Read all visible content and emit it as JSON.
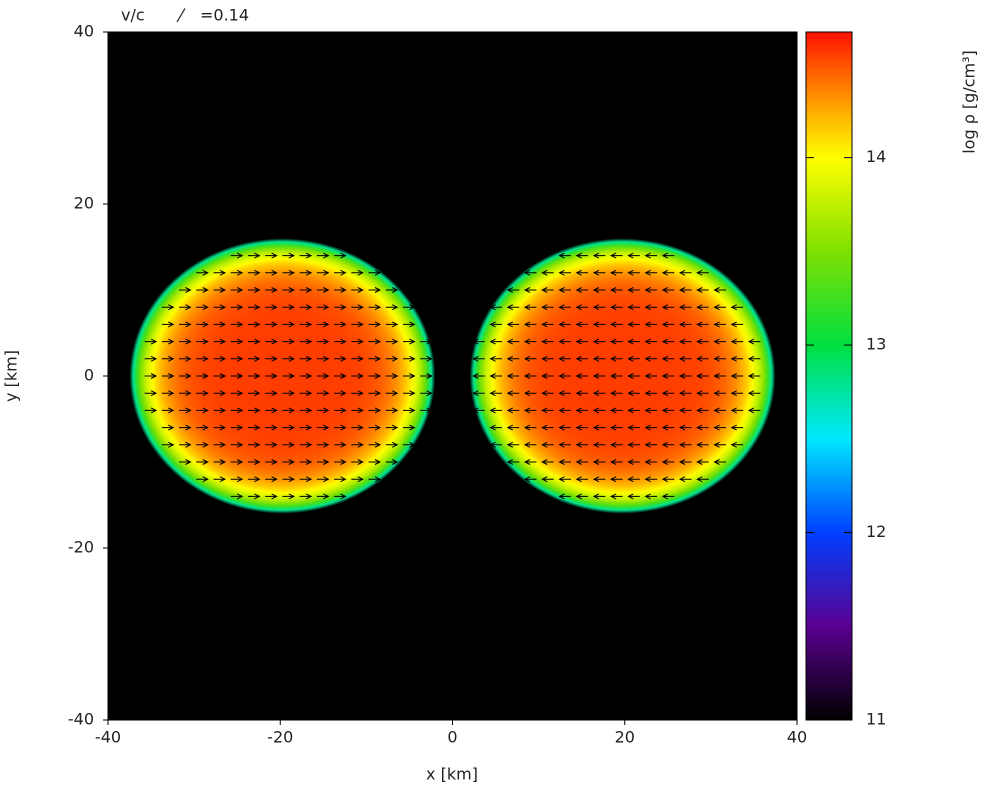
{
  "chart_data": {
    "type": "density_map",
    "vector_key": {
      "name": "v/c",
      "value": 0.14,
      "value_label": "=0.14"
    },
    "x_label": "x [km]",
    "y_label": "y [km]",
    "xlim": [
      -40,
      40
    ],
    "ylim": [
      -40,
      40
    ],
    "xticks": [
      -40,
      -20,
      0,
      20,
      40
    ],
    "yticks": [
      -40,
      -20,
      0,
      20,
      40
    ],
    "stars": [
      {
        "cx": -19.75,
        "cy": 0,
        "rx": 17.75,
        "ry": 16,
        "peak": 14.55,
        "vx": 0.1
      },
      {
        "cx": 19.75,
        "cy": 0,
        "rx": 17.75,
        "ry": 16,
        "peak": 14.55,
        "vx": -0.1
      }
    ],
    "colorbar": {
      "label": "log ρ [g/cm³]",
      "clim": [
        11,
        14.67
      ],
      "ticks": [
        11,
        12,
        13,
        14
      ],
      "colormap": [
        {
          "value": 11,
          "color": "#000000"
        },
        {
          "value": 11.5,
          "color": "#5a0090"
        },
        {
          "value": 12,
          "color": "#0040ff"
        },
        {
          "value": 12.5,
          "color": "#00e8ff"
        },
        {
          "value": 13,
          "color": "#00e040"
        },
        {
          "value": 13.5,
          "color": "#80e000"
        },
        {
          "value": 14,
          "color": "#ffff00"
        },
        {
          "value": 14.3,
          "color": "#ff9a00"
        },
        {
          "value": 14.67,
          "color": "#ff1000"
        }
      ]
    }
  }
}
